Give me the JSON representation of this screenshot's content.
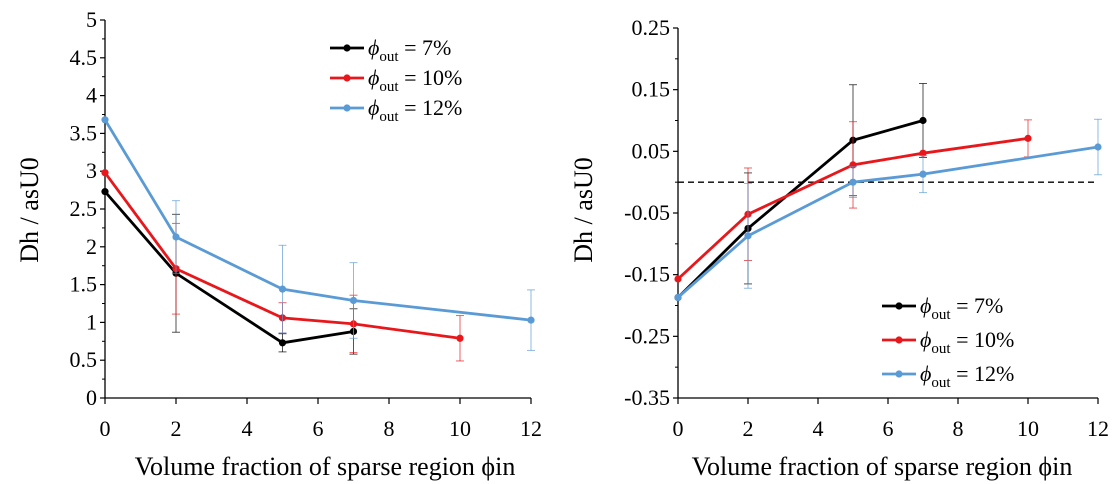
{
  "chart_data": [
    {
      "type": "line",
      "xlabel": "Volume fraction of sparse region  ϕin",
      "ylabel": "Dh / asU0",
      "xlim": [
        0,
        12
      ],
      "ylim": [
        0,
        5
      ],
      "xticks": [
        0,
        2,
        4,
        6,
        8,
        10,
        12
      ],
      "xtick_labels": [
        "0",
        "2",
        "4",
        "6",
        "8",
        "10",
        "12"
      ],
      "yticks": [
        0,
        0.5,
        1,
        1.5,
        2,
        2.5,
        3,
        3.5,
        4,
        4.5,
        5
      ],
      "ytick_labels": [
        "0",
        "0.5",
        "1",
        "1.5",
        "2",
        "2.5",
        "3",
        "3.5",
        "4",
        "4.5",
        "5"
      ],
      "grid": false,
      "legend_position": "top-right",
      "series": [
        {
          "name": "ϕout = 7%",
          "name_parts": [
            "ϕ",
            "out",
            " = 7%"
          ],
          "color": "#000000",
          "x": [
            0,
            2,
            5,
            7
          ],
          "y": [
            2.73,
            1.65,
            0.73,
            0.88
          ],
          "err": [
            0.0,
            0.78,
            0.12,
            0.3
          ]
        },
        {
          "name": "ϕout = 10%",
          "name_parts": [
            "ϕ",
            "out",
            " = 10%"
          ],
          "color": "#e8171b",
          "x": [
            0,
            2,
            5,
            7,
            10
          ],
          "y": [
            2.98,
            1.71,
            1.06,
            0.98,
            0.79
          ],
          "err": [
            0.0,
            0.6,
            0.2,
            0.38,
            0.3
          ]
        },
        {
          "name": "ϕout = 12%",
          "name_parts": [
            "ϕ",
            "out",
            " = 12%"
          ],
          "color": "#5b9bd5",
          "x": [
            0,
            2,
            5,
            7,
            12
          ],
          "y": [
            3.68,
            2.13,
            1.44,
            1.29,
            1.03
          ],
          "err": [
            0.0,
            0.48,
            0.58,
            0.5,
            0.4
          ]
        }
      ]
    },
    {
      "type": "line",
      "xlabel": "Volume fraction of sparse region  ϕin",
      "ylabel": "Dh / asU0",
      "xlim": [
        0,
        12
      ],
      "ylim": [
        -0.35,
        0.25
      ],
      "xticks": [
        0,
        2,
        4,
        6,
        8,
        10,
        12
      ],
      "xtick_labels": [
        "0",
        "2",
        "4",
        "6",
        "8",
        "10",
        "12"
      ],
      "yticks": [
        -0.35,
        -0.25,
        -0.15,
        -0.05,
        0.05,
        0.15,
        0.25
      ],
      "ytick_labels": [
        "-0.35",
        "-0.25",
        "-0.15",
        "-0.05",
        "0.05",
        "0.15",
        "0.25"
      ],
      "reference_line": {
        "y": 0,
        "style": "dashed"
      },
      "grid": false,
      "legend_position": "bottom-right",
      "series": [
        {
          "name": "ϕout = 7%",
          "name_parts": [
            "ϕ",
            "out",
            " = 7%"
          ],
          "color": "#000000",
          "x": [
            0,
            2,
            5,
            7
          ],
          "y": [
            -0.187,
            -0.075,
            0.068,
            0.1
          ],
          "err": [
            0.0,
            0.09,
            0.09,
            0.06
          ]
        },
        {
          "name": "ϕout = 10%",
          "name_parts": [
            "ϕ",
            "out",
            " = 10%"
          ],
          "color": "#e8171b",
          "x": [
            0,
            2,
            5,
            7,
            10
          ],
          "y": [
            -0.157,
            -0.052,
            0.028,
            0.047,
            0.071
          ],
          "err": [
            0.0,
            0.075,
            0.07,
            0.0,
            0.03
          ]
        },
        {
          "name": "ϕout = 12%",
          "name_parts": [
            "ϕ",
            "out",
            " = 12%"
          ],
          "color": "#5b9bd5",
          "x": [
            0,
            2,
            5,
            7,
            12
          ],
          "y": [
            -0.187,
            -0.087,
            0.0,
            0.013,
            0.057
          ],
          "err": [
            0.0,
            0.085,
            0.025,
            0.03,
            0.045
          ]
        }
      ]
    }
  ]
}
